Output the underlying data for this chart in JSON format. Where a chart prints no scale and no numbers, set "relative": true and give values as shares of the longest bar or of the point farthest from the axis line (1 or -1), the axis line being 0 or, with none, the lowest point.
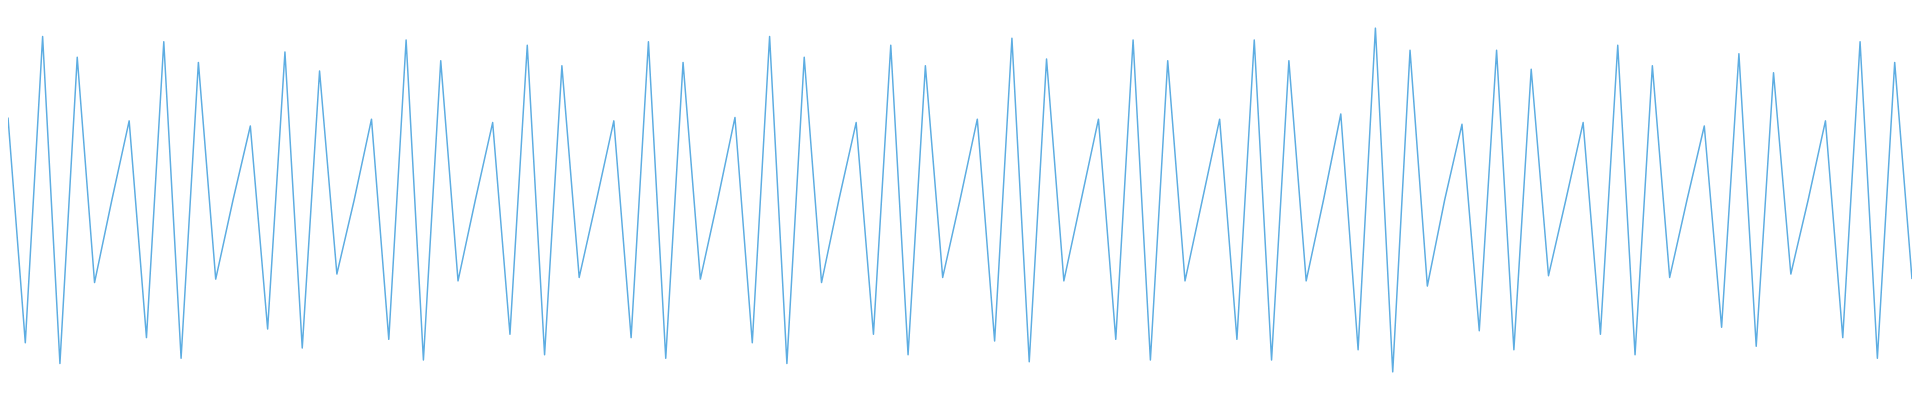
{
  "chart_data": {
    "type": "line",
    "relative": true,
    "categories": [
      null,
      null,
      null,
      null,
      null,
      null,
      null,
      null,
      null,
      null,
      null,
      null,
      null,
      null,
      null,
      null,
      null,
      null,
      null,
      null,
      null,
      null,
      null,
      null,
      null,
      null,
      null,
      null,
      null,
      null,
      null,
      null,
      null,
      null,
      null,
      null,
      null,
      null,
      null,
      null,
      null,
      null,
      null,
      null,
      null,
      null,
      null,
      null,
      null,
      null,
      null,
      null,
      null,
      null,
      null,
      null,
      null,
      null,
      null,
      null,
      null,
      null,
      null,
      null,
      null,
      null,
      null,
      null,
      null,
      null,
      null,
      null,
      null,
      null,
      null,
      null,
      null,
      null,
      null,
      null,
      null,
      null,
      null,
      null,
      null,
      null,
      null,
      null,
      null,
      null,
      null,
      null,
      null,
      null,
      null,
      null,
      null,
      null,
      null,
      null,
      null,
      null,
      null,
      null,
      null,
      null,
      null,
      null,
      null,
      null,
      null
    ],
    "series": [
      {
        "color": "#5dade2",
        "values": [
          0.74,
          0.085,
          0.975,
          0.025,
          0.915,
          0.26,
          0.5,
          0.73,
          0.1,
          0.96,
          0.04,
          0.9,
          0.27,
          0.5,
          0.715,
          0.125,
          0.93,
          0.07,
          0.875,
          0.285,
          0.5,
          0.735,
          0.095,
          0.965,
          0.035,
          0.905,
          0.265,
          0.5,
          0.725,
          0.11,
          0.95,
          0.05,
          0.89,
          0.275,
          0.5,
          0.73,
          0.1,
          0.96,
          0.04,
          0.9,
          0.27,
          0.5,
          0.74,
          0.085,
          0.975,
          0.025,
          0.915,
          0.26,
          0.5,
          0.725,
          0.11,
          0.95,
          0.05,
          0.89,
          0.275,
          0.5,
          0.735,
          0.09,
          0.97,
          0.03,
          0.91,
          0.265,
          0.5,
          0.735,
          0.095,
          0.965,
          0.035,
          0.905,
          0.265,
          0.5,
          0.735,
          0.095,
          0.965,
          0.035,
          0.905,
          0.265,
          0.5,
          0.75,
          0.065,
          1,
          0,
          0.935,
          0.25,
          0.5,
          0.72,
          0.12,
          0.935,
          0.065,
          0.88,
          0.28,
          0.5,
          0.725,
          0.11,
          0.95,
          0.05,
          0.89,
          0.275,
          0.5,
          0.715,
          0.13,
          0.925,
          0.075,
          0.87,
          0.285,
          0.5,
          0.73,
          0.1,
          0.96,
          0.04,
          0.9,
          0.27
        ]
      }
    ]
  }
}
